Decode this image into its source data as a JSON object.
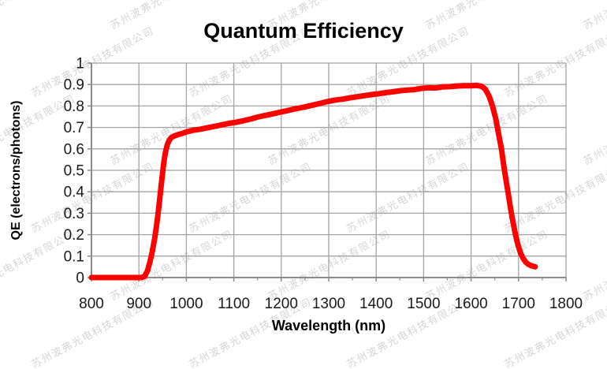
{
  "watermark": {
    "text": "苏州波弗光电科技有限公司"
  },
  "chart_data": {
    "type": "line",
    "title": "Quantum Efficiency",
    "xlabel": "Wavelength (nm)",
    "ylabel": "QE (electrons/photons)",
    "xlim": [
      800,
      1800
    ],
    "ylim": [
      0,
      1
    ],
    "grid": true,
    "legend": "none",
    "x_ticks": {
      "values": [
        800,
        900,
        1000,
        1100,
        1200,
        1300,
        1400,
        1500,
        1600,
        1700,
        1800
      ],
      "labels": [
        "800",
        "900",
        "1000",
        "1100",
        "1200",
        "1300",
        "1400",
        "1500",
        "1600",
        "1700",
        "1800"
      ]
    },
    "x_minor_ticks": [
      850,
      950,
      1050,
      1150,
      1250,
      1350,
      1450,
      1550,
      1650,
      1750
    ],
    "y_ticks": {
      "values": [
        0,
        0.1,
        0.2,
        0.3,
        0.4,
        0.5,
        0.6,
        0.7,
        0.8,
        0.9,
        1
      ],
      "labels": [
        "0",
        "0.1",
        "0.2",
        "0.3",
        "0.4",
        "0.5",
        "0.6",
        "0.7",
        "0.8",
        "0.9",
        "1"
      ]
    },
    "colors": {
      "curve": "#ff0000",
      "grid": "#a3a3a3",
      "axis": "#8a8a8a",
      "text": "#1a1a1a"
    },
    "line_width": 7,
    "series": [
      {
        "name": "QE",
        "points": [
          [
            800,
            0
          ],
          [
            820,
            0
          ],
          [
            840,
            0
          ],
          [
            860,
            0
          ],
          [
            880,
            0
          ],
          [
            895,
            0
          ],
          [
            905,
            0
          ],
          [
            912,
            0.005
          ],
          [
            918,
            0.03
          ],
          [
            923,
            0.07
          ],
          [
            928,
            0.12
          ],
          [
            933,
            0.18
          ],
          [
            937,
            0.24
          ],
          [
            941,
            0.31
          ],
          [
            944,
            0.37
          ],
          [
            947,
            0.43
          ],
          [
            950,
            0.49
          ],
          [
            953,
            0.545
          ],
          [
            956,
            0.585
          ],
          [
            960,
            0.62
          ],
          [
            964,
            0.64
          ],
          [
            968,
            0.652
          ],
          [
            974,
            0.66
          ],
          [
            982,
            0.666
          ],
          [
            990,
            0.671
          ],
          [
            1000,
            0.679
          ],
          [
            1015,
            0.687
          ],
          [
            1030,
            0.692
          ],
          [
            1045,
            0.699
          ],
          [
            1060,
            0.705
          ],
          [
            1075,
            0.712
          ],
          [
            1090,
            0.719
          ],
          [
            1105,
            0.724
          ],
          [
            1120,
            0.731
          ],
          [
            1135,
            0.739
          ],
          [
            1150,
            0.748
          ],
          [
            1165,
            0.755
          ],
          [
            1180,
            0.762
          ],
          [
            1195,
            0.77
          ],
          [
            1210,
            0.777
          ],
          [
            1225,
            0.785
          ],
          [
            1240,
            0.791
          ],
          [
            1255,
            0.798
          ],
          [
            1270,
            0.806
          ],
          [
            1285,
            0.814
          ],
          [
            1300,
            0.822
          ],
          [
            1315,
            0.828
          ],
          [
            1330,
            0.832
          ],
          [
            1345,
            0.838
          ],
          [
            1360,
            0.843
          ],
          [
            1375,
            0.848
          ],
          [
            1390,
            0.853
          ],
          [
            1405,
            0.857
          ],
          [
            1420,
            0.862
          ],
          [
            1435,
            0.866
          ],
          [
            1450,
            0.871
          ],
          [
            1465,
            0.874
          ],
          [
            1480,
            0.876
          ],
          [
            1495,
            0.882
          ],
          [
            1510,
            0.885
          ],
          [
            1525,
            0.884
          ],
          [
            1540,
            0.889
          ],
          [
            1555,
            0.89
          ],
          [
            1570,
            0.893
          ],
          [
            1585,
            0.895
          ],
          [
            1600,
            0.894
          ],
          [
            1612,
            0.896
          ],
          [
            1622,
            0.892
          ],
          [
            1630,
            0.878
          ],
          [
            1638,
            0.845
          ],
          [
            1645,
            0.8
          ],
          [
            1652,
            0.74
          ],
          [
            1658,
            0.67
          ],
          [
            1664,
            0.6
          ],
          [
            1669,
            0.52
          ],
          [
            1674,
            0.45
          ],
          [
            1679,
            0.38
          ],
          [
            1684,
            0.31
          ],
          [
            1689,
            0.25
          ],
          [
            1694,
            0.195
          ],
          [
            1699,
            0.15
          ],
          [
            1704,
            0.115
          ],
          [
            1710,
            0.088
          ],
          [
            1716,
            0.07
          ],
          [
            1722,
            0.06
          ],
          [
            1728,
            0.054
          ],
          [
            1735,
            0.05
          ]
        ]
      }
    ]
  }
}
